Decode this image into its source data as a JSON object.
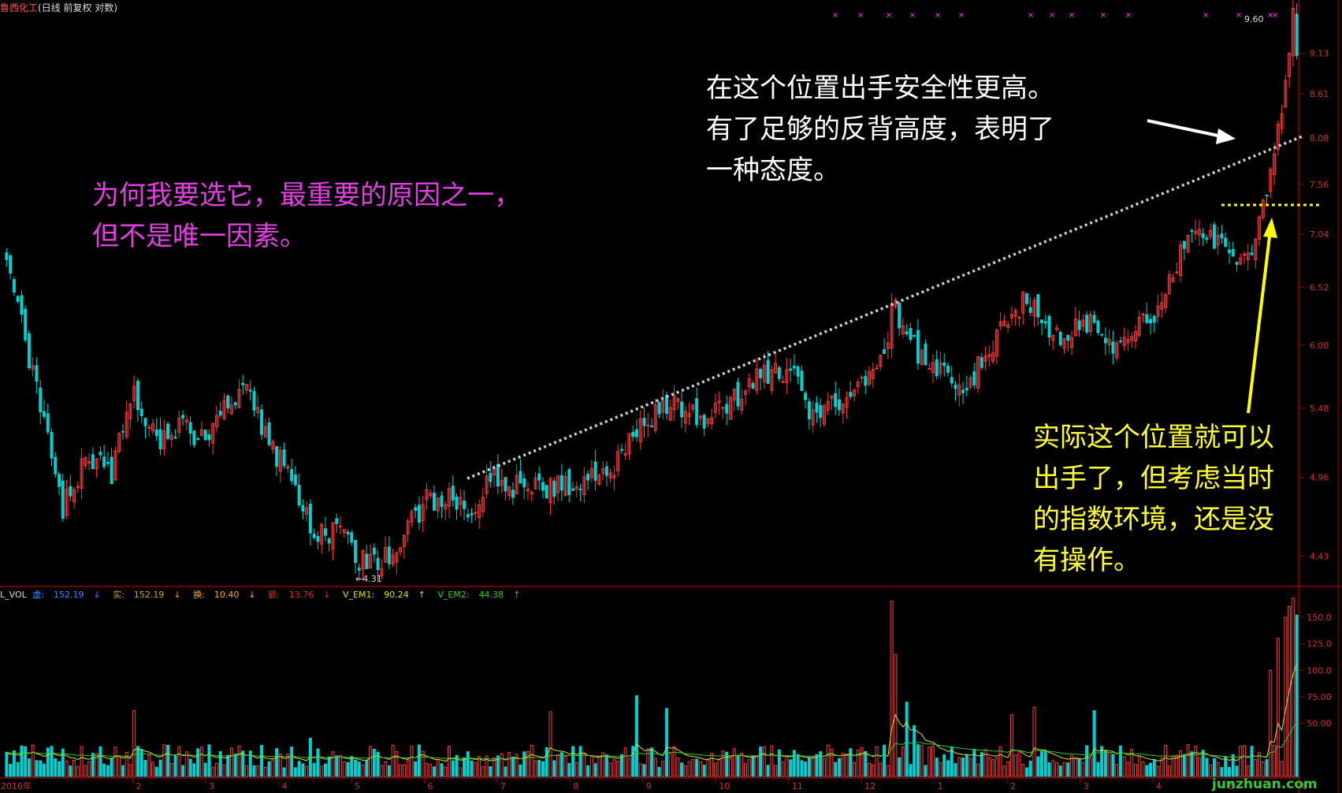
{
  "header": {
    "stock_name": "鲁西化工",
    "mode": "(日线 前复权 对数)",
    "name_color": "#ff5555",
    "mode_color": "#dddddd"
  },
  "annotations": {
    "white": [
      "在这个位置出手安全性更高。",
      "有了足够的反背高度，表明了",
      "一种态度。"
    ],
    "magenta": [
      "为何我要选它，最重要的原因之一，",
      "但不是唯一因素。"
    ],
    "yellow": [
      "实际这个位置就可以",
      "出手了，但考虑当时",
      "的指数环境，还是没",
      "有操作。"
    ]
  },
  "price_labels": {
    "high": "9.60",
    "low": "←4.31"
  },
  "volume_header": {
    "name": "L_VOL",
    "items": [
      {
        "label": "虚:",
        "value": "152.19",
        "color": "#4488ff"
      },
      {
        "label": "实:",
        "value": "152.19",
        "color": "#d4a030"
      },
      {
        "label": "换:",
        "value": "10.40",
        "color": "#ffaa44"
      },
      {
        "label": "额:",
        "value": "13.76",
        "color": "#cc3333"
      },
      {
        "label": "V_EM1:",
        "value": "90.24",
        "color": "#dddd33"
      },
      {
        "label": "V_EM2:",
        "value": "44.38",
        "color": "#33cc33"
      }
    ]
  },
  "watermark": "junzhuan.com",
  "colors": {
    "up": "#ff3a3a",
    "down": "#00d0d0",
    "axis": "#8b0000",
    "tick_text": "#cc3333",
    "trendline": "#d0d0d0",
    "support": "#ffff00",
    "marker": "#ff33ff"
  },
  "chart_data": {
    "type": "candlestick",
    "price_scale": "log",
    "price_ticks": [
      "9.13",
      "8.61",
      "8.08",
      "7.56",
      "7.04",
      "6.52",
      "6.00",
      "5.48",
      "4.96",
      "4.43"
    ],
    "ylim_price": [
      4.25,
      9.7
    ],
    "volume_ticks": [
      "150.0",
      "125.0",
      "100.0",
      "75.00",
      "50.00"
    ],
    "ylim_volume": [
      0,
      170
    ],
    "x_labels": [
      "2016年",
      "2",
      "3",
      "4",
      "5",
      "6",
      "7",
      "8",
      "9",
      "10",
      "11",
      "12",
      "1",
      "2",
      "3",
      "4",
      "5",
      "6"
    ],
    "anchors": [
      {
        "i": 0,
        "p": 6.9
      },
      {
        "i": 8,
        "p": 5.6
      },
      {
        "i": 15,
        "p": 4.75
      },
      {
        "i": 22,
        "p": 5.12
      },
      {
        "i": 28,
        "p": 5.0
      },
      {
        "i": 34,
        "p": 5.62
      },
      {
        "i": 40,
        "p": 5.2
      },
      {
        "i": 46,
        "p": 5.33
      },
      {
        "i": 52,
        "p": 5.25
      },
      {
        "i": 58,
        "p": 5.45
      },
      {
        "i": 64,
        "p": 5.6
      },
      {
        "i": 70,
        "p": 5.2
      },
      {
        "i": 76,
        "p": 4.95
      },
      {
        "i": 82,
        "p": 4.55
      },
      {
        "i": 88,
        "p": 4.6
      },
      {
        "i": 94,
        "p": 4.4
      },
      {
        "i": 100,
        "p": 4.38
      },
      {
        "i": 106,
        "p": 4.58
      },
      {
        "i": 112,
        "p": 4.8
      },
      {
        "i": 118,
        "p": 4.82
      },
      {
        "i": 124,
        "p": 4.68
      },
      {
        "i": 128,
        "p": 4.98
      },
      {
        "i": 134,
        "p": 4.9
      },
      {
        "i": 142,
        "p": 4.88
      },
      {
        "i": 150,
        "p": 4.92
      },
      {
        "i": 156,
        "p": 4.98
      },
      {
        "i": 162,
        "p": 5.05
      },
      {
        "i": 168,
        "p": 5.28
      },
      {
        "i": 174,
        "p": 5.5
      },
      {
        "i": 180,
        "p": 5.5
      },
      {
        "i": 186,
        "p": 5.38
      },
      {
        "i": 192,
        "p": 5.5
      },
      {
        "i": 198,
        "p": 5.68
      },
      {
        "i": 204,
        "p": 5.78
      },
      {
        "i": 210,
        "p": 5.78
      },
      {
        "i": 214,
        "p": 5.4
      },
      {
        "i": 222,
        "p": 5.52
      },
      {
        "i": 228,
        "p": 5.68
      },
      {
        "i": 234,
        "p": 5.84
      },
      {
        "i": 236,
        "p": 6.4
      },
      {
        "i": 242,
        "p": 5.98
      },
      {
        "i": 248,
        "p": 5.8
      },
      {
        "i": 254,
        "p": 5.62
      },
      {
        "i": 260,
        "p": 5.84
      },
      {
        "i": 266,
        "p": 6.18
      },
      {
        "i": 272,
        "p": 6.42
      },
      {
        "i": 278,
        "p": 6.1
      },
      {
        "i": 284,
        "p": 6.12
      },
      {
        "i": 290,
        "p": 6.2
      },
      {
        "i": 296,
        "p": 5.98
      },
      {
        "i": 302,
        "p": 6.15
      },
      {
        "i": 308,
        "p": 6.38
      },
      {
        "i": 314,
        "p": 6.92
      },
      {
        "i": 320,
        "p": 7.05
      },
      {
        "i": 326,
        "p": 6.95
      },
      {
        "i": 330,
        "p": 6.75
      },
      {
        "i": 334,
        "p": 7.1
      },
      {
        "i": 337,
        "p": 7.7
      },
      {
        "i": 340,
        "p": 8.4
      },
      {
        "i": 343,
        "p": 9.6
      },
      {
        "i": 344,
        "p": 9.1
      }
    ],
    "volume_spikes": [
      {
        "i": 34,
        "v": 62
      },
      {
        "i": 81,
        "v": 36
      },
      {
        "i": 145,
        "v": 61
      },
      {
        "i": 168,
        "v": 76
      },
      {
        "i": 176,
        "v": 64
      },
      {
        "i": 236,
        "v": 165
      },
      {
        "i": 237,
        "v": 115
      },
      {
        "i": 240,
        "v": 70
      },
      {
        "i": 242,
        "v": 48
      },
      {
        "i": 268,
        "v": 58
      },
      {
        "i": 274,
        "v": 65
      },
      {
        "i": 290,
        "v": 62
      },
      {
        "i": 337,
        "v": 100
      },
      {
        "i": 339,
        "v": 130
      },
      {
        "i": 341,
        "v": 150
      },
      {
        "i": 342,
        "v": 160
      },
      {
        "i": 343,
        "v": 168
      },
      {
        "i": 344,
        "v": 152
      }
    ],
    "bar_count": 345
  }
}
